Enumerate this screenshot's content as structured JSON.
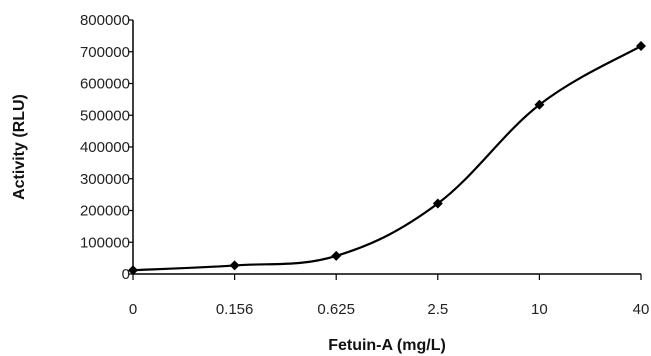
{
  "chart_data": {
    "type": "line",
    "title": "",
    "xlabel": "Fetuin-A (mg/L)",
    "ylabel": "Activity (RLU)",
    "categories": [
      "0",
      "0.156",
      "0.625",
      "2.5",
      "10",
      "40"
    ],
    "series": [
      {
        "values": [
          12000,
          27000,
          57000,
          222000,
          533000,
          718000
        ]
      }
    ],
    "ylim": [
      0,
      800000
    ],
    "yticks": [
      "0",
      "100000",
      "200000",
      "300000",
      "400000",
      "500000",
      "600000",
      "700000",
      "800000"
    ],
    "grid": false,
    "marker": "diamond",
    "line_color": "#000000"
  }
}
